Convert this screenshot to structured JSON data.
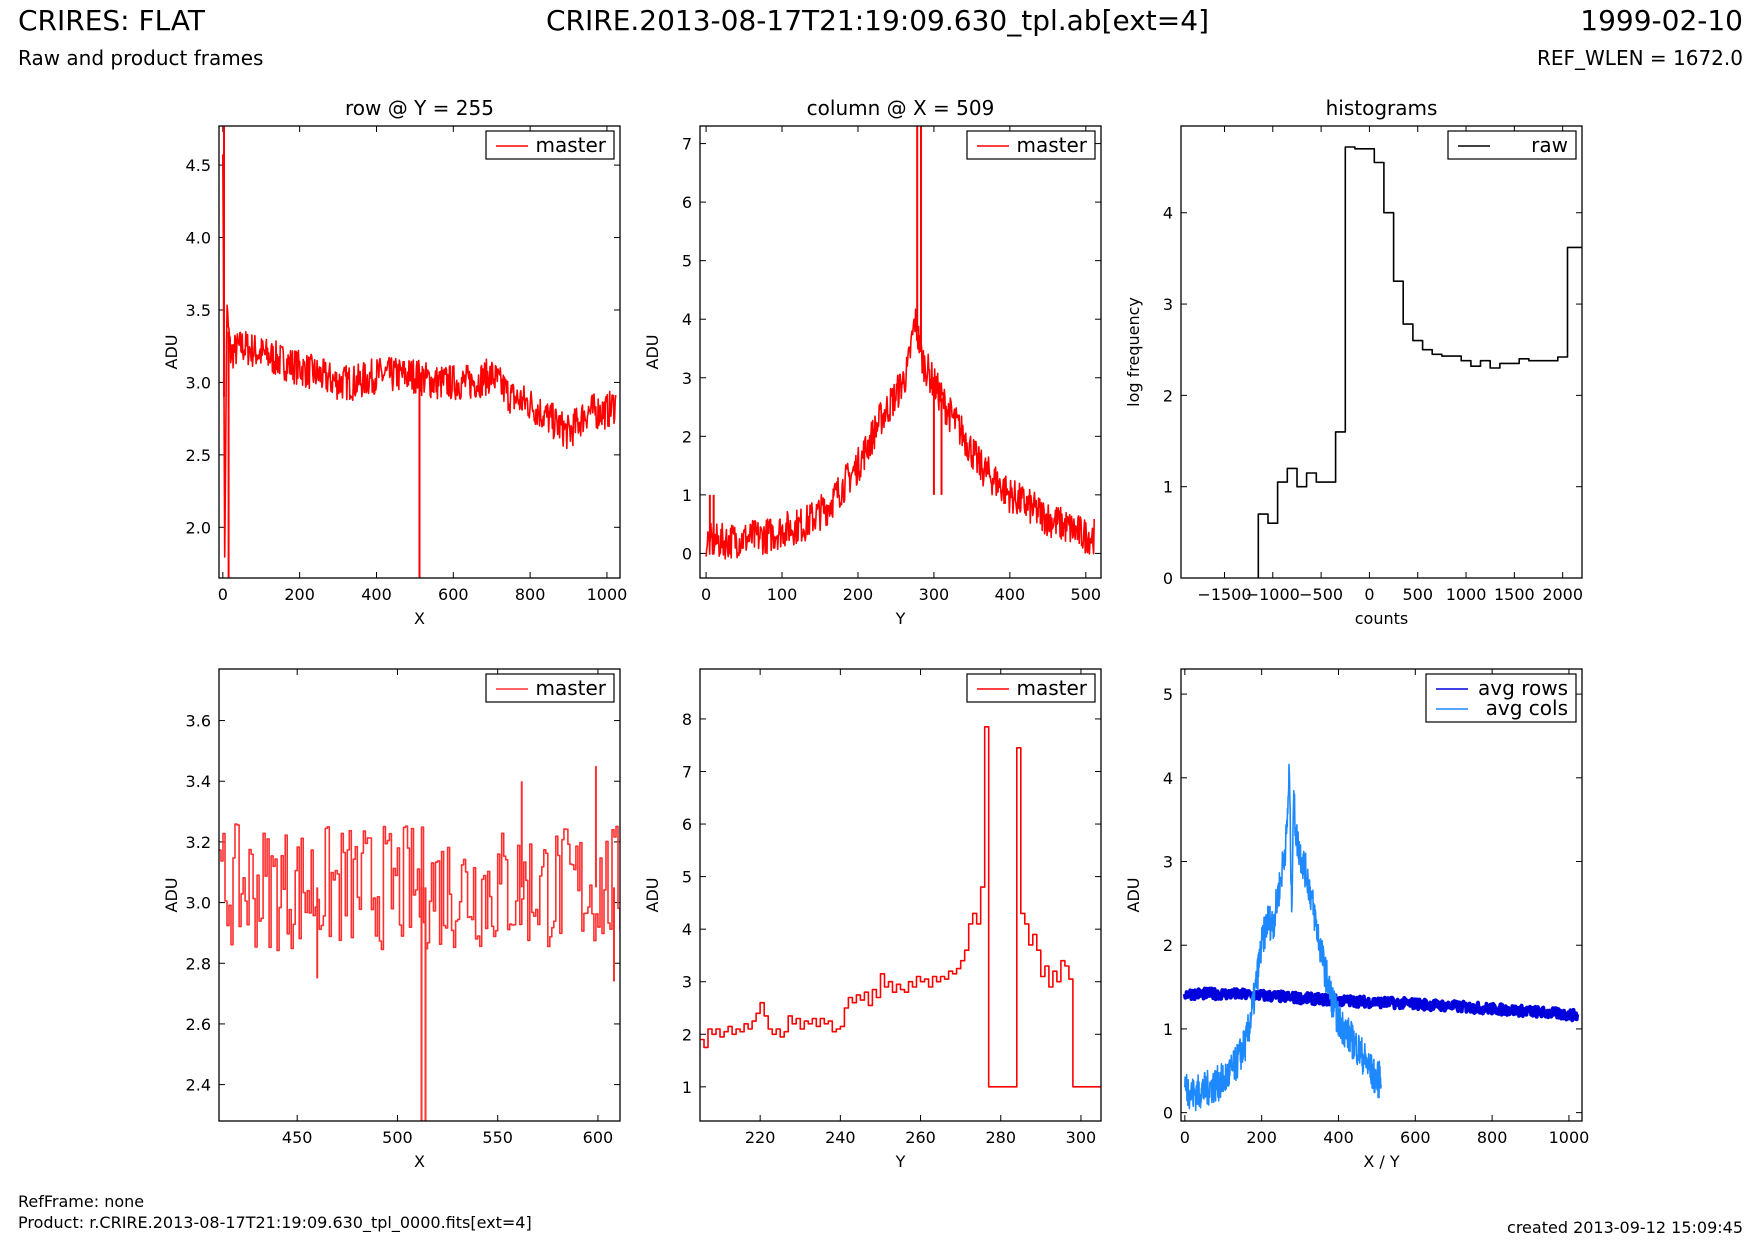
{
  "header": {
    "title": "CRIRES: FLAT",
    "subtitle": "Raw and product frames",
    "center": "CRIRE.2013-08-17T21:19:09.630_tpl.ab[ext=4]",
    "date": "1999-02-10",
    "ref_wlen": "REF_WLEN = 1672.0"
  },
  "footer": {
    "ref_frame": "RefFrame: none",
    "product": "Product: r.CRIRE.2013-08-17T21:19:09.630_tpl_0000.fits[ext=4]",
    "created": "created 2013-09-12 15:09:45"
  },
  "colors": {
    "red": "#ff0000",
    "black": "#000000",
    "blue": "#0000dd",
    "light_blue": "#1e88ff"
  },
  "chart_data": [
    {
      "id": "p1",
      "type": "line",
      "title": "row @ Y = 255",
      "xlabel": "X",
      "ylabel": "ADU",
      "xlim": [
        -10,
        1034
      ],
      "ylim": [
        1.65,
        4.77
      ],
      "xticks": [
        0,
        200,
        400,
        600,
        800,
        1000
      ],
      "yticks": [
        2.0,
        2.5,
        3.0,
        3.5,
        4.0,
        4.5
      ],
      "legend": "top-right",
      "series": [
        {
          "name": "master",
          "color": "#ff0000",
          "style": "noisy",
          "x": [
            0,
            5,
            10,
            20,
            50,
            100,
            150,
            200,
            250,
            300,
            350,
            400,
            450,
            500,
            550,
            600,
            650,
            700,
            750,
            800,
            850,
            900,
            950,
            1000,
            1023
          ],
          "y": [
            4.7,
            1.7,
            3.5,
            3.2,
            3.25,
            3.2,
            3.15,
            3.1,
            3.05,
            3.0,
            3.0,
            3.05,
            3.05,
            3.05,
            3.0,
            3.0,
            3.0,
            3.05,
            2.9,
            2.85,
            2.75,
            2.65,
            2.8,
            2.8,
            2.85
          ],
          "spikes": [
            {
              "x": 3,
              "y": 4.77
            },
            {
              "x": 15,
              "y": 1.65
            },
            {
              "x": 512,
              "y": 1.65
            }
          ]
        }
      ]
    },
    {
      "id": "p2",
      "type": "line",
      "title": "column @ X = 509",
      "xlabel": "Y",
      "ylabel": "ADU",
      "xlim": [
        -8,
        520
      ],
      "ylim": [
        -0.42,
        7.3
      ],
      "xticks": [
        0,
        100,
        200,
        300,
        400,
        500
      ],
      "yticks": [
        0,
        1,
        2,
        3,
        4,
        5,
        6,
        7
      ],
      "legend": "top-right",
      "series": [
        {
          "name": "master",
          "color": "#ff0000",
          "style": "noisy",
          "x": [
            0,
            20,
            50,
            80,
            100,
            130,
            160,
            200,
            230,
            250,
            265,
            275,
            285,
            300,
            320,
            340,
            360,
            400,
            450,
            500,
            511
          ],
          "y": [
            0.2,
            0.2,
            0.25,
            0.3,
            0.4,
            0.5,
            0.8,
            1.5,
            2.3,
            2.7,
            3.1,
            4.0,
            3.3,
            2.9,
            2.4,
            2.0,
            1.5,
            1.0,
            0.6,
            0.3,
            0.3
          ],
          "spikes": [
            {
              "x": 5,
              "y": 1.0
            },
            {
              "x": 10,
              "y": 1.0
            },
            {
              "x": 278,
              "y": 7.3
            },
            {
              "x": 283,
              "y": 7.3
            },
            {
              "x": 300,
              "y": 1.0
            },
            {
              "x": 310,
              "y": 1.0
            }
          ]
        }
      ]
    },
    {
      "id": "p3",
      "type": "line",
      "title": "histograms",
      "xlabel": "counts",
      "ylabel": "log frequency",
      "xlim": [
        -1950,
        2200
      ],
      "ylim": [
        0,
        4.95
      ],
      "xticks": [
        -1500,
        -1000,
        -500,
        0,
        500,
        1000,
        1500,
        2000
      ],
      "xticklabels": [
        "−1500",
        "−1000",
        "−500",
        "0",
        "500",
        "1000",
        "1500",
        "2000"
      ],
      "yticks": [
        0,
        1,
        2,
        3,
        4
      ],
      "legend": "top-right",
      "series": [
        {
          "name": "raw",
          "color": "#000000",
          "style": "steps",
          "x": [
            -1150,
            -1050,
            -950,
            -850,
            -750,
            -650,
            -550,
            -350,
            -250,
            -150,
            50,
            150,
            250,
            350,
            450,
            550,
            650,
            750,
            950,
            1050,
            1150,
            1250,
            1350,
            1550,
            1650,
            1950,
            2050,
            2150
          ],
          "y": [
            0.7,
            0.6,
            1.05,
            1.2,
            1.0,
            1.15,
            1.05,
            1.6,
            4.72,
            4.7,
            4.55,
            4.0,
            3.25,
            2.78,
            2.6,
            2.5,
            2.45,
            2.43,
            2.38,
            2.32,
            2.38,
            2.3,
            2.35,
            2.4,
            2.38,
            2.42,
            3.62,
            3.62
          ]
        }
      ]
    },
    {
      "id": "p4",
      "type": "line",
      "xlabel": "X",
      "ylabel": "ADU",
      "xlim": [
        411,
        611
      ],
      "ylim": [
        2.28,
        3.77
      ],
      "xticks": [
        450,
        500,
        550,
        600
      ],
      "yticks": [
        2.4,
        2.6,
        2.8,
        3.0,
        3.2,
        3.4,
        3.6
      ],
      "legend": "top-right",
      "series": [
        {
          "name": "master",
          "color": "#ff3030",
          "style": "steps-noisy",
          "x": [
            411,
            450,
            500,
            550,
            611
          ],
          "y": [
            3.05,
            3.05,
            3.05,
            3.05,
            3.05
          ],
          "spikes": [
            {
              "x": 460,
              "y": 2.75
            },
            {
              "x": 512,
              "y": 2.28
            },
            {
              "x": 514,
              "y": 2.28
            },
            {
              "x": 562,
              "y": 3.4
            },
            {
              "x": 599,
              "y": 3.45
            },
            {
              "x": 608,
              "y": 2.74
            }
          ]
        }
      ]
    },
    {
      "id": "p5",
      "type": "line",
      "xlabel": "Y",
      "ylabel": "ADU",
      "xlim": [
        205,
        305
      ],
      "ylim": [
        0.35,
        8.95
      ],
      "xticks": [
        220,
        240,
        260,
        280,
        300
      ],
      "yticks": [
        1,
        2,
        3,
        4,
        5,
        6,
        7,
        8
      ],
      "legend": "top-right",
      "series": [
        {
          "name": "master",
          "color": "#ff0000",
          "style": "steps",
          "x": [
            205,
            206,
            207,
            208,
            209,
            210,
            211,
            212,
            213,
            214,
            215,
            216,
            217,
            218,
            219,
            220,
            221,
            222,
            223,
            224,
            225,
            226,
            227,
            228,
            229,
            230,
            231,
            232,
            233,
            234,
            235,
            236,
            237,
            238,
            239,
            240,
            241,
            242,
            243,
            244,
            245,
            246,
            247,
            248,
            249,
            250,
            251,
            252,
            253,
            254,
            255,
            256,
            257,
            258,
            259,
            260,
            261,
            262,
            263,
            264,
            265,
            266,
            267,
            268,
            269,
            270,
            271,
            272,
            273,
            274,
            275,
            276,
            277,
            278,
            279,
            280,
            281,
            282,
            283,
            284,
            285,
            286,
            287,
            288,
            289,
            290,
            291,
            292,
            293,
            294,
            295,
            296,
            297,
            298,
            299,
            300,
            301,
            302,
            303,
            304,
            305
          ],
          "y": [
            1.9,
            1.75,
            2.1,
            2.0,
            2.1,
            1.95,
            2.05,
            2.15,
            2.0,
            2.1,
            2.05,
            2.2,
            2.1,
            2.25,
            2.4,
            2.6,
            2.35,
            2.1,
            2.0,
            2.1,
            1.95,
            2.05,
            2.35,
            2.2,
            2.3,
            2.1,
            2.25,
            2.2,
            2.3,
            2.15,
            2.3,
            2.2,
            2.25,
            2.05,
            2.1,
            2.15,
            2.5,
            2.7,
            2.6,
            2.75,
            2.65,
            2.8,
            2.55,
            2.85,
            2.7,
            3.15,
            2.9,
            3.0,
            2.8,
            2.95,
            2.85,
            2.8,
            3.0,
            2.9,
            3.1,
            3.0,
            3.05,
            2.9,
            3.1,
            3.0,
            3.1,
            3.05,
            3.2,
            3.15,
            3.25,
            3.4,
            3.6,
            4.1,
            4.3,
            4.1,
            4.8,
            7.85,
            1.0,
            1.0,
            1.0,
            1.0,
            1.0,
            1.0,
            1.0,
            7.45,
            4.3,
            4.1,
            3.7,
            3.9,
            3.6,
            3.1,
            3.3,
            2.9,
            3.2,
            3.0,
            3.4,
            3.3,
            3.05,
            1.0,
            1.0,
            1.0,
            1.0,
            1.0,
            1.0,
            1.0,
            1.0
          ]
        }
      ]
    },
    {
      "id": "p6",
      "type": "line",
      "xlabel": "X / Y",
      "ylabel": "ADU",
      "xlim": [
        -10,
        1034
      ],
      "ylim": [
        -0.1,
        5.3
      ],
      "xticks": [
        0,
        200,
        400,
        600,
        800,
        1000
      ],
      "yticks": [
        0,
        1,
        2,
        3,
        4,
        5
      ],
      "legend": "top-right",
      "series": [
        {
          "name": "avg rows",
          "color": "#0000dd",
          "style": "band",
          "width": 4,
          "x": [
            0,
            100,
            200,
            300,
            400,
            500,
            600,
            700,
            800,
            900,
            1000,
            1023
          ],
          "y": [
            1.42,
            1.42,
            1.4,
            1.37,
            1.34,
            1.32,
            1.3,
            1.27,
            1.24,
            1.21,
            1.17,
            1.16
          ]
        },
        {
          "name": "avg cols",
          "color": "#1e88ff",
          "style": "noisy",
          "x": [
            0,
            2,
            5,
            20,
            50,
            100,
            130,
            160,
            180,
            200,
            215,
            230,
            250,
            265,
            272,
            278,
            283,
            290,
            300,
            320,
            340,
            360,
            380,
            400,
            430,
            460,
            490,
            505,
            511
          ],
          "y": [
            0.45,
            0.25,
            0.3,
            0.22,
            0.27,
            0.38,
            0.55,
            0.85,
            1.35,
            2.0,
            2.3,
            2.25,
            2.8,
            3.3,
            4.1,
            2.4,
            3.75,
            3.3,
            3.1,
            2.8,
            2.3,
            1.8,
            1.4,
            1.1,
            0.9,
            0.7,
            0.45,
            0.38,
            0.5
          ]
        }
      ]
    }
  ]
}
